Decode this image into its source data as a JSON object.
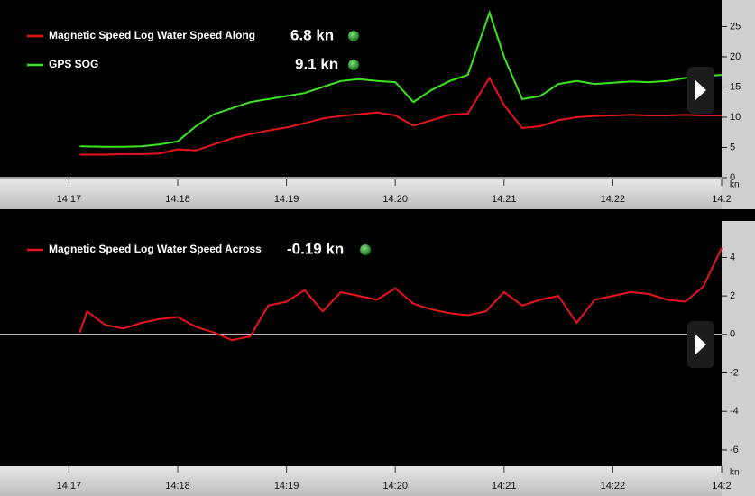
{
  "chart_data": [
    {
      "type": "line",
      "x": [
        "14:17:06",
        "14:17:20",
        "14:17:30",
        "14:17:40",
        "14:17:50",
        "14:18:00",
        "14:18:10",
        "14:18:20",
        "14:18:30",
        "14:18:40",
        "14:18:50",
        "14:19:00",
        "14:19:10",
        "14:19:20",
        "14:19:30",
        "14:19:40",
        "14:19:50",
        "14:20:00",
        "14:20:10",
        "14:20:20",
        "14:20:30",
        "14:20:40",
        "14:20:52",
        "14:21:00",
        "14:21:10",
        "14:21:20",
        "14:21:30",
        "14:21:40",
        "14:21:50",
        "14:22:00",
        "14:22:10",
        "14:22:20",
        "14:22:30",
        "14:22:40",
        "14:22:50",
        "14:23:00"
      ],
      "series": [
        {
          "name": "Magnetic Speed Log Water Speed Along",
          "readout": "6.8 kn",
          "color": "#e8141a",
          "values": [
            3.8,
            3.8,
            3.9,
            3.9,
            4.0,
            4.7,
            4.5,
            5.5,
            6.5,
            7.2,
            7.8,
            8.3,
            9.0,
            9.8,
            10.2,
            10.5,
            10.8,
            10.3,
            8.6,
            9.5,
            10.4,
            10.6,
            16.5,
            12.0,
            8.2,
            8.5,
            9.5,
            10.0,
            10.2,
            10.3,
            10.4,
            10.3,
            10.3,
            10.4,
            10.3,
            10.3
          ]
        },
        {
          "name": "GPS SOG",
          "readout": "9.1 kn",
          "color": "#3ce61e",
          "values": [
            5.2,
            5.1,
            5.1,
            5.2,
            5.5,
            6.0,
            8.5,
            10.5,
            11.5,
            12.5,
            13.0,
            13.5,
            14.0,
            15.0,
            16.0,
            16.3,
            16.0,
            15.8,
            12.5,
            14.5,
            16.0,
            17.0,
            27.3,
            20.0,
            13.0,
            13.5,
            15.5,
            16.0,
            15.5,
            15.7,
            15.9,
            15.8,
            16.0,
            16.5,
            16.8,
            17.0
          ]
        }
      ],
      "xlim": [
        "14:16:22",
        "14:23:00"
      ],
      "xticks": [
        "14:17",
        "14:18",
        "14:19",
        "14:20",
        "14:21",
        "14:22",
        {
          "value": "14:23",
          "label": "14:2"
        }
      ],
      "ylim": [
        0,
        28.5
      ],
      "yticks": [
        0,
        5,
        10,
        15,
        20,
        25
      ],
      "y_unit": "kn",
      "zero_line": true
    },
    {
      "type": "line",
      "x": [
        "14:17:06",
        "14:17:10",
        "14:17:20",
        "14:17:30",
        "14:17:40",
        "14:17:50",
        "14:18:00",
        "14:18:10",
        "14:18:20",
        "14:18:30",
        "14:18:40",
        "14:18:50",
        "14:19:00",
        "14:19:10",
        "14:19:20",
        "14:19:30",
        "14:19:40",
        "14:19:50",
        "14:20:00",
        "14:20:10",
        "14:20:20",
        "14:20:30",
        "14:20:40",
        "14:20:50",
        "14:21:00",
        "14:21:10",
        "14:21:20",
        "14:21:30",
        "14:21:40",
        "14:21:50",
        "14:22:00",
        "14:22:10",
        "14:22:20",
        "14:22:30",
        "14:22:40",
        "14:22:50",
        "14:23:00"
      ],
      "series": [
        {
          "name": "Magnetic Speed Log Water Speed Across",
          "readout": "-0.19 kn",
          "color": "#e8141a",
          "values": [
            0.1,
            1.2,
            0.5,
            0.3,
            0.6,
            0.8,
            0.9,
            0.4,
            0.1,
            -0.3,
            -0.1,
            1.5,
            1.7,
            2.3,
            1.2,
            2.2,
            2.0,
            1.8,
            2.4,
            1.6,
            1.3,
            1.1,
            1.0,
            1.2,
            2.2,
            1.5,
            1.8,
            2.0,
            0.6,
            1.8,
            2.0,
            2.2,
            2.1,
            1.8,
            1.7,
            2.5,
            4.5
          ]
        }
      ],
      "xlim": [
        "14:16:22",
        "14:23:00"
      ],
      "xticks": [
        "14:17",
        "14:18",
        "14:19",
        "14:20",
        "14:21",
        "14:22",
        {
          "value": "14:23",
          "label": "14:2"
        }
      ],
      "ylim": [
        -6.8,
        5.8
      ],
      "yticks": [
        4,
        2,
        0,
        -2,
        -4,
        -6
      ],
      "y_unit": "kn",
      "zero_line": true
    }
  ]
}
